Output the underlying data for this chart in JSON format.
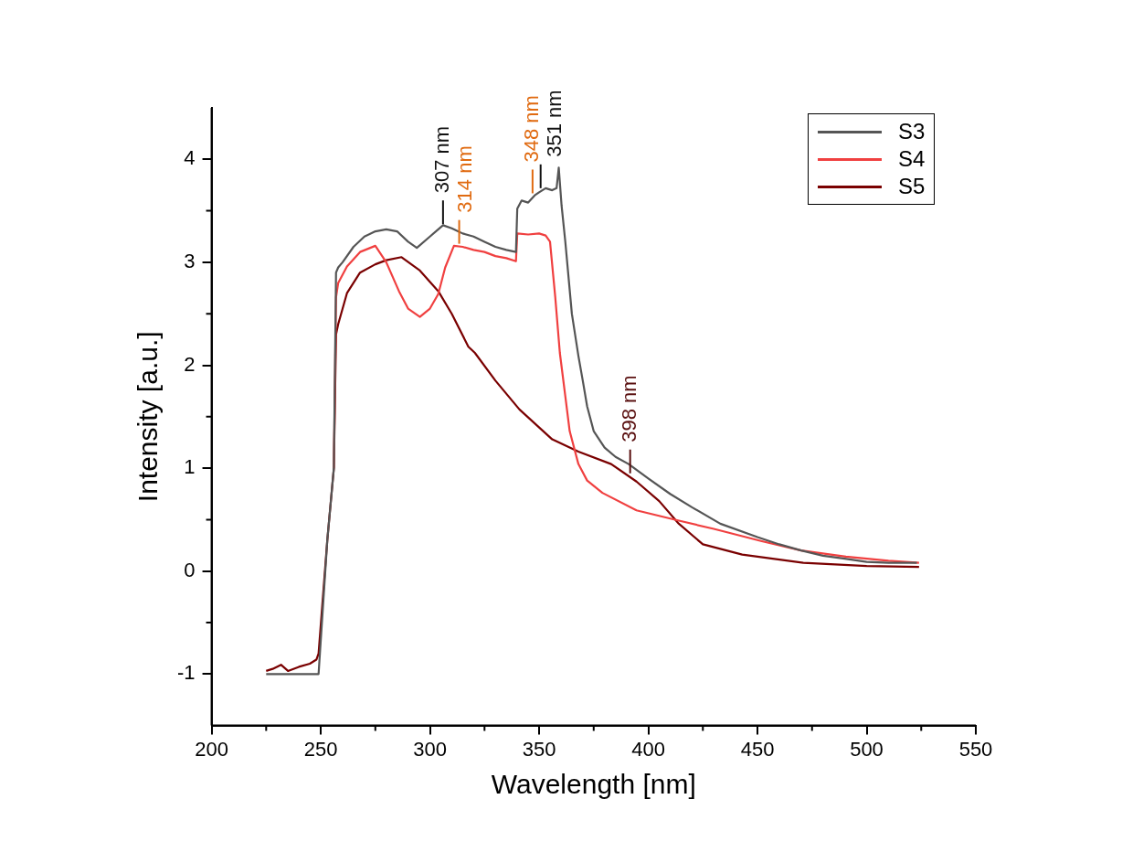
{
  "chart_data": {
    "type": "line",
    "xlabel": "Wavelength [nm]",
    "ylabel": "Intensity [a.u.]",
    "xlim": [
      200,
      550
    ],
    "ylim": [
      -1.5,
      4.5
    ],
    "xticks": [
      200,
      250,
      300,
      350,
      400,
      450,
      500,
      550
    ],
    "yticks": [
      -1,
      0,
      1,
      2,
      3,
      4
    ],
    "grid": false,
    "legend": "top right",
    "marker": "none",
    "line_style": "solid",
    "series": [
      {
        "name": "S3",
        "color": "#555555",
        "x": [
          225,
          249,
          253,
          256,
          257,
          258,
          260,
          265,
          270,
          275,
          280,
          285,
          290,
          294,
          300,
          306,
          310,
          315,
          320,
          325,
          330,
          335,
          339.4,
          340,
          342,
          345,
          348,
          350,
          353,
          356,
          358,
          359,
          360.3,
          362,
          365,
          368,
          370,
          372,
          375,
          380,
          385,
          391,
          400,
          410,
          420,
          433,
          450,
          460,
          470,
          480,
          490,
          500,
          510,
          523
        ],
        "values": [
          -1,
          -1,
          0.3,
          1.0,
          2.9,
          2.95,
          3.0,
          3.15,
          3.25,
          3.3,
          3.32,
          3.3,
          3.2,
          3.14,
          3.25,
          3.36,
          3.33,
          3.28,
          3.25,
          3.2,
          3.15,
          3.12,
          3.1,
          3.52,
          3.6,
          3.58,
          3.65,
          3.68,
          3.72,
          3.7,
          3.72,
          3.92,
          3.55,
          3.2,
          2.5,
          2.09,
          1.85,
          1.6,
          1.36,
          1.2,
          1.11,
          1.04,
          0.9,
          0.75,
          0.62,
          0.46,
          0.33,
          0.26,
          0.2,
          0.15,
          0.12,
          0.09,
          0.08,
          0.08
        ]
      },
      {
        "name": "S4",
        "color": "#f04040",
        "x": [
          256,
          257,
          258,
          262,
          268,
          275,
          280,
          285.8,
          290,
          295.4,
          300,
          303.8,
          307,
          311,
          315,
          320,
          325,
          330,
          335,
          339.4,
          340,
          345,
          350,
          353,
          355,
          357.4,
          359.5,
          362,
          364,
          368,
          372,
          379,
          394.6,
          414,
          430,
          452,
          470,
          490.5,
          510,
          524
        ],
        "values": [
          1.0,
          2.66,
          2.8,
          2.96,
          3.1,
          3.16,
          3.0,
          2.72,
          2.55,
          2.47,
          2.55,
          2.69,
          2.95,
          3.16,
          3.15,
          3.12,
          3.1,
          3.06,
          3.04,
          3.01,
          3.28,
          3.27,
          3.28,
          3.26,
          3.2,
          2.66,
          2.12,
          1.7,
          1.36,
          1.04,
          0.88,
          0.76,
          0.59,
          0.49,
          0.41,
          0.29,
          0.2,
          0.14,
          0.1,
          0.08
        ]
      },
      {
        "name": "S5",
        "color": "#7a0000",
        "x": [
          225,
          228,
          231.8,
          235,
          240,
          245,
          248,
          249,
          253,
          256,
          257,
          258,
          262,
          268,
          275,
          280,
          287,
          295.4,
          303.8,
          310,
          317.6,
          320.6,
          330,
          341,
          356,
          368,
          383,
          394.6,
          405,
          414,
          425,
          443,
          471,
          500,
          524
        ],
        "values": [
          -0.97,
          -0.95,
          -0.91,
          -0.97,
          -0.93,
          -0.9,
          -0.86,
          -0.8,
          0.3,
          1.0,
          2.3,
          2.4,
          2.7,
          2.9,
          2.98,
          3.02,
          3.05,
          2.92,
          2.72,
          2.5,
          2.18,
          2.12,
          1.85,
          1.57,
          1.28,
          1.16,
          1.04,
          0.87,
          0.68,
          0.46,
          0.26,
          0.16,
          0.08,
          0.05,
          0.04
        ]
      }
    ],
    "annotations": [
      {
        "text": "307 nm",
        "x": 306,
        "y": 3.37
      },
      {
        "text": "314 nm",
        "x": 313.4,
        "y": 3.18
      },
      {
        "text": "348 nm",
        "x": 347,
        "y": 3.67
      },
      {
        "text": "351 nm",
        "x": 350.7,
        "y": 3.72
      },
      {
        "text": "398 nm",
        "x": 391.7,
        "y": 0.95
      }
    ]
  }
}
